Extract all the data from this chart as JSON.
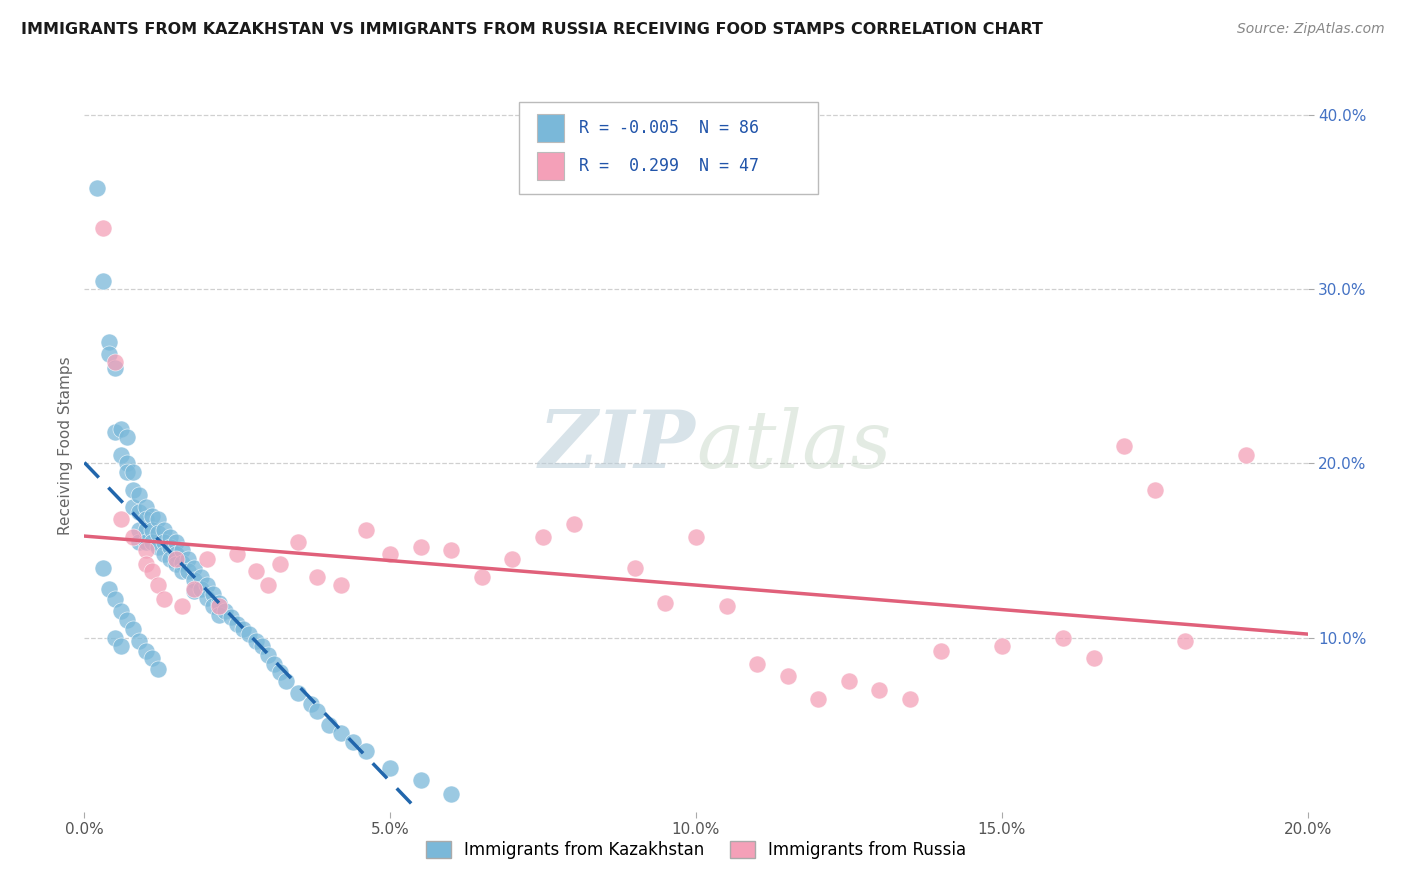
{
  "title": "IMMIGRANTS FROM KAZAKHSTAN VS IMMIGRANTS FROM RUSSIA RECEIVING FOOD STAMPS CORRELATION CHART",
  "source": "Source: ZipAtlas.com",
  "ylabel": "Receiving Food Stamps",
  "xlim": [
    0.0,
    0.2
  ],
  "ylim": [
    0.0,
    0.42
  ],
  "xticks": [
    0.0,
    0.05,
    0.1,
    0.15,
    0.2
  ],
  "xtick_labels": [
    "0.0%",
    "5.0%",
    "10.0%",
    "15.0%",
    "20.0%"
  ],
  "yticks_right": [
    0.1,
    0.2,
    0.3,
    0.4
  ],
  "ytick_labels_right": [
    "10.0%",
    "20.0%",
    "30.0%",
    "40.0%"
  ],
  "grid_yticks": [
    0.1,
    0.2,
    0.3,
    0.4
  ],
  "kaz_color": "#7ab8d9",
  "rus_color": "#f4a0b8",
  "kaz_line_color": "#2166ac",
  "rus_line_color": "#e0607a",
  "R_kaz": -0.005,
  "N_kaz": 86,
  "R_rus": 0.299,
  "N_rus": 47,
  "background_color": "#ffffff",
  "grid_color": "#d0d0d0",
  "watermark": "ZIPatlas",
  "watermark_color": "#d0dde8",
  "legend_label_kaz": "Immigrants from Kazakhstan",
  "legend_label_rus": "Immigrants from Russia",
  "kaz_x": [
    0.002,
    0.003,
    0.004,
    0.004,
    0.005,
    0.005,
    0.006,
    0.006,
    0.007,
    0.007,
    0.007,
    0.008,
    0.008,
    0.008,
    0.009,
    0.009,
    0.009,
    0.009,
    0.01,
    0.01,
    0.01,
    0.01,
    0.011,
    0.011,
    0.011,
    0.012,
    0.012,
    0.012,
    0.013,
    0.013,
    0.013,
    0.014,
    0.014,
    0.014,
    0.015,
    0.015,
    0.015,
    0.016,
    0.016,
    0.016,
    0.017,
    0.017,
    0.018,
    0.018,
    0.018,
    0.019,
    0.019,
    0.02,
    0.02,
    0.021,
    0.021,
    0.022,
    0.022,
    0.023,
    0.024,
    0.025,
    0.026,
    0.027,
    0.028,
    0.029,
    0.03,
    0.031,
    0.032,
    0.033,
    0.035,
    0.037,
    0.038,
    0.04,
    0.042,
    0.044,
    0.046,
    0.05,
    0.055,
    0.06,
    0.003,
    0.004,
    0.005,
    0.006,
    0.007,
    0.008,
    0.009,
    0.01,
    0.011,
    0.012,
    0.005,
    0.006
  ],
  "kaz_y": [
    0.358,
    0.305,
    0.27,
    0.263,
    0.255,
    0.218,
    0.22,
    0.205,
    0.215,
    0.2,
    0.195,
    0.195,
    0.185,
    0.175,
    0.182,
    0.172,
    0.162,
    0.155,
    0.175,
    0.168,
    0.162,
    0.155,
    0.17,
    0.162,
    0.155,
    0.168,
    0.16,
    0.152,
    0.162,
    0.155,
    0.148,
    0.158,
    0.152,
    0.145,
    0.155,
    0.148,
    0.142,
    0.15,
    0.143,
    0.138,
    0.145,
    0.138,
    0.14,
    0.133,
    0.127,
    0.135,
    0.128,
    0.13,
    0.123,
    0.125,
    0.118,
    0.12,
    0.113,
    0.115,
    0.112,
    0.108,
    0.105,
    0.102,
    0.098,
    0.095,
    0.09,
    0.085,
    0.08,
    0.075,
    0.068,
    0.062,
    0.058,
    0.05,
    0.045,
    0.04,
    0.035,
    0.025,
    0.018,
    0.01,
    0.14,
    0.128,
    0.122,
    0.115,
    0.11,
    0.105,
    0.098,
    0.092,
    0.088,
    0.082,
    0.1,
    0.095
  ],
  "rus_x": [
    0.003,
    0.005,
    0.006,
    0.008,
    0.01,
    0.01,
    0.011,
    0.012,
    0.013,
    0.015,
    0.016,
    0.018,
    0.02,
    0.022,
    0.025,
    0.028,
    0.03,
    0.032,
    0.035,
    0.038,
    0.042,
    0.046,
    0.05,
    0.055,
    0.06,
    0.065,
    0.07,
    0.075,
    0.08,
    0.09,
    0.095,
    0.1,
    0.105,
    0.11,
    0.115,
    0.12,
    0.125,
    0.13,
    0.135,
    0.14,
    0.15,
    0.16,
    0.165,
    0.17,
    0.175,
    0.18,
    0.19
  ],
  "rus_y": [
    0.335,
    0.258,
    0.168,
    0.158,
    0.15,
    0.142,
    0.138,
    0.13,
    0.122,
    0.145,
    0.118,
    0.128,
    0.145,
    0.118,
    0.148,
    0.138,
    0.13,
    0.142,
    0.155,
    0.135,
    0.13,
    0.162,
    0.148,
    0.152,
    0.15,
    0.135,
    0.145,
    0.158,
    0.165,
    0.14,
    0.12,
    0.158,
    0.118,
    0.085,
    0.078,
    0.065,
    0.075,
    0.07,
    0.065,
    0.092,
    0.095,
    0.1,
    0.088,
    0.21,
    0.185,
    0.098,
    0.205
  ]
}
